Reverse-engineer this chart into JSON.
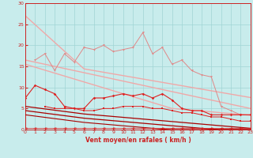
{
  "x": [
    0,
    1,
    2,
    3,
    4,
    5,
    6,
    7,
    8,
    9,
    10,
    11,
    12,
    13,
    14,
    15,
    16,
    17,
    18,
    19,
    20,
    21,
    22,
    23
  ],
  "line_upper_smooth": [
    27,
    24.9,
    22.8,
    20.7,
    18.6,
    16.5,
    14.4,
    14.0,
    13.6,
    13.2,
    12.8,
    12.4,
    12.0,
    11.6,
    11.2,
    10.8,
    10.4,
    10.0,
    9.6,
    9.2,
    8.8,
    8.4,
    8.0,
    7.6
  ],
  "line_mid_smooth": [
    16.5,
    16.0,
    15.5,
    15.0,
    14.5,
    14.0,
    13.5,
    13.0,
    12.5,
    12.0,
    11.5,
    11.0,
    10.5,
    10.0,
    9.5,
    9.0,
    8.5,
    8.0,
    7.5,
    7.0,
    6.5,
    6.0,
    5.5,
    5.0
  ],
  "line_mid2_smooth": [
    15.5,
    14.8,
    14.1,
    13.4,
    12.7,
    12.0,
    11.3,
    10.6,
    9.9,
    9.2,
    8.5,
    7.8,
    7.1,
    6.4,
    5.7,
    5.0,
    4.8,
    4.6,
    4.4,
    4.2,
    4.0,
    3.8,
    3.6,
    3.4
  ],
  "line_pink_jagged": [
    null,
    16.5,
    18.0,
    14.0,
    18.0,
    16.0,
    19.5,
    19.0,
    20.0,
    18.5,
    19.0,
    19.5,
    23.0,
    18.0,
    19.5,
    15.5,
    16.5,
    14.0,
    13.0,
    12.5,
    5.5,
    4.5,
    3.5,
    3.5
  ],
  "line_red_upper": [
    7.5,
    10.5,
    9.5,
    8.5,
    5.5,
    5.0,
    5.0,
    7.5,
    7.5,
    8.0,
    8.5,
    8.0,
    8.5,
    7.5,
    8.5,
    7.0,
    5.0,
    4.5,
    4.5,
    3.5,
    3.5,
    3.5,
    3.5,
    3.5
  ],
  "line_red_mid": [
    null,
    null,
    5.5,
    5.0,
    5.0,
    5.0,
    4.5,
    4.5,
    5.0,
    5.0,
    5.5,
    5.5,
    5.5,
    5.0,
    5.0,
    4.5,
    4.0,
    4.0,
    3.5,
    3.0,
    3.0,
    2.5,
    2.0,
    2.0
  ],
  "line_dark1": [
    5.5,
    5.2,
    4.9,
    4.6,
    4.3,
    4.0,
    3.7,
    3.5,
    3.3,
    3.1,
    2.9,
    2.7,
    2.5,
    2.3,
    2.1,
    1.9,
    1.7,
    1.5,
    1.3,
    1.1,
    0.9,
    0.7,
    0.5,
    0.3
  ],
  "line_dark2": [
    4.5,
    4.2,
    3.9,
    3.6,
    3.3,
    3.0,
    2.7,
    2.5,
    2.3,
    2.1,
    1.9,
    1.7,
    1.5,
    1.3,
    1.1,
    0.9,
    0.7,
    0.5,
    0.3,
    0.1,
    0.0,
    0.0,
    0.0,
    0.0
  ],
  "line_dark3": [
    3.5,
    3.2,
    2.9,
    2.6,
    2.3,
    2.0,
    1.7,
    1.5,
    1.3,
    1.1,
    0.9,
    0.7,
    0.5,
    0.3,
    0.1,
    0.0,
    0.0,
    0.0,
    0.0,
    0.0,
    0.0,
    0.0,
    0.0,
    0.0
  ],
  "line_arrow": [
    0.3,
    0.3,
    0.3,
    0.3,
    0.3,
    0.3,
    0.3,
    0.3,
    0.3,
    0.3,
    0.3,
    0.3,
    0.3,
    0.3,
    0.3,
    0.3,
    0.3,
    0.3,
    0.3,
    0.3,
    0.3,
    0.3,
    0.3,
    0.3
  ],
  "xlabel": "Vent moyen/en rafales ( km/h )",
  "ylim": [
    0,
    30
  ],
  "xlim": [
    0,
    23
  ],
  "yticks": [
    0,
    5,
    10,
    15,
    20,
    25,
    30
  ],
  "xticks": [
    0,
    1,
    2,
    3,
    4,
    5,
    6,
    7,
    8,
    9,
    10,
    11,
    12,
    13,
    14,
    15,
    16,
    17,
    18,
    19,
    20,
    21,
    22,
    23
  ],
  "bg_color": "#c8ecec",
  "grid_color": "#a0d4d4",
  "color_light_pink": "#f0a8a8",
  "color_med_pink": "#e08888",
  "color_red": "#dd2222",
  "color_dark_red": "#aa0000",
  "color_tick": "#cc2222",
  "color_label": "#cc2222"
}
